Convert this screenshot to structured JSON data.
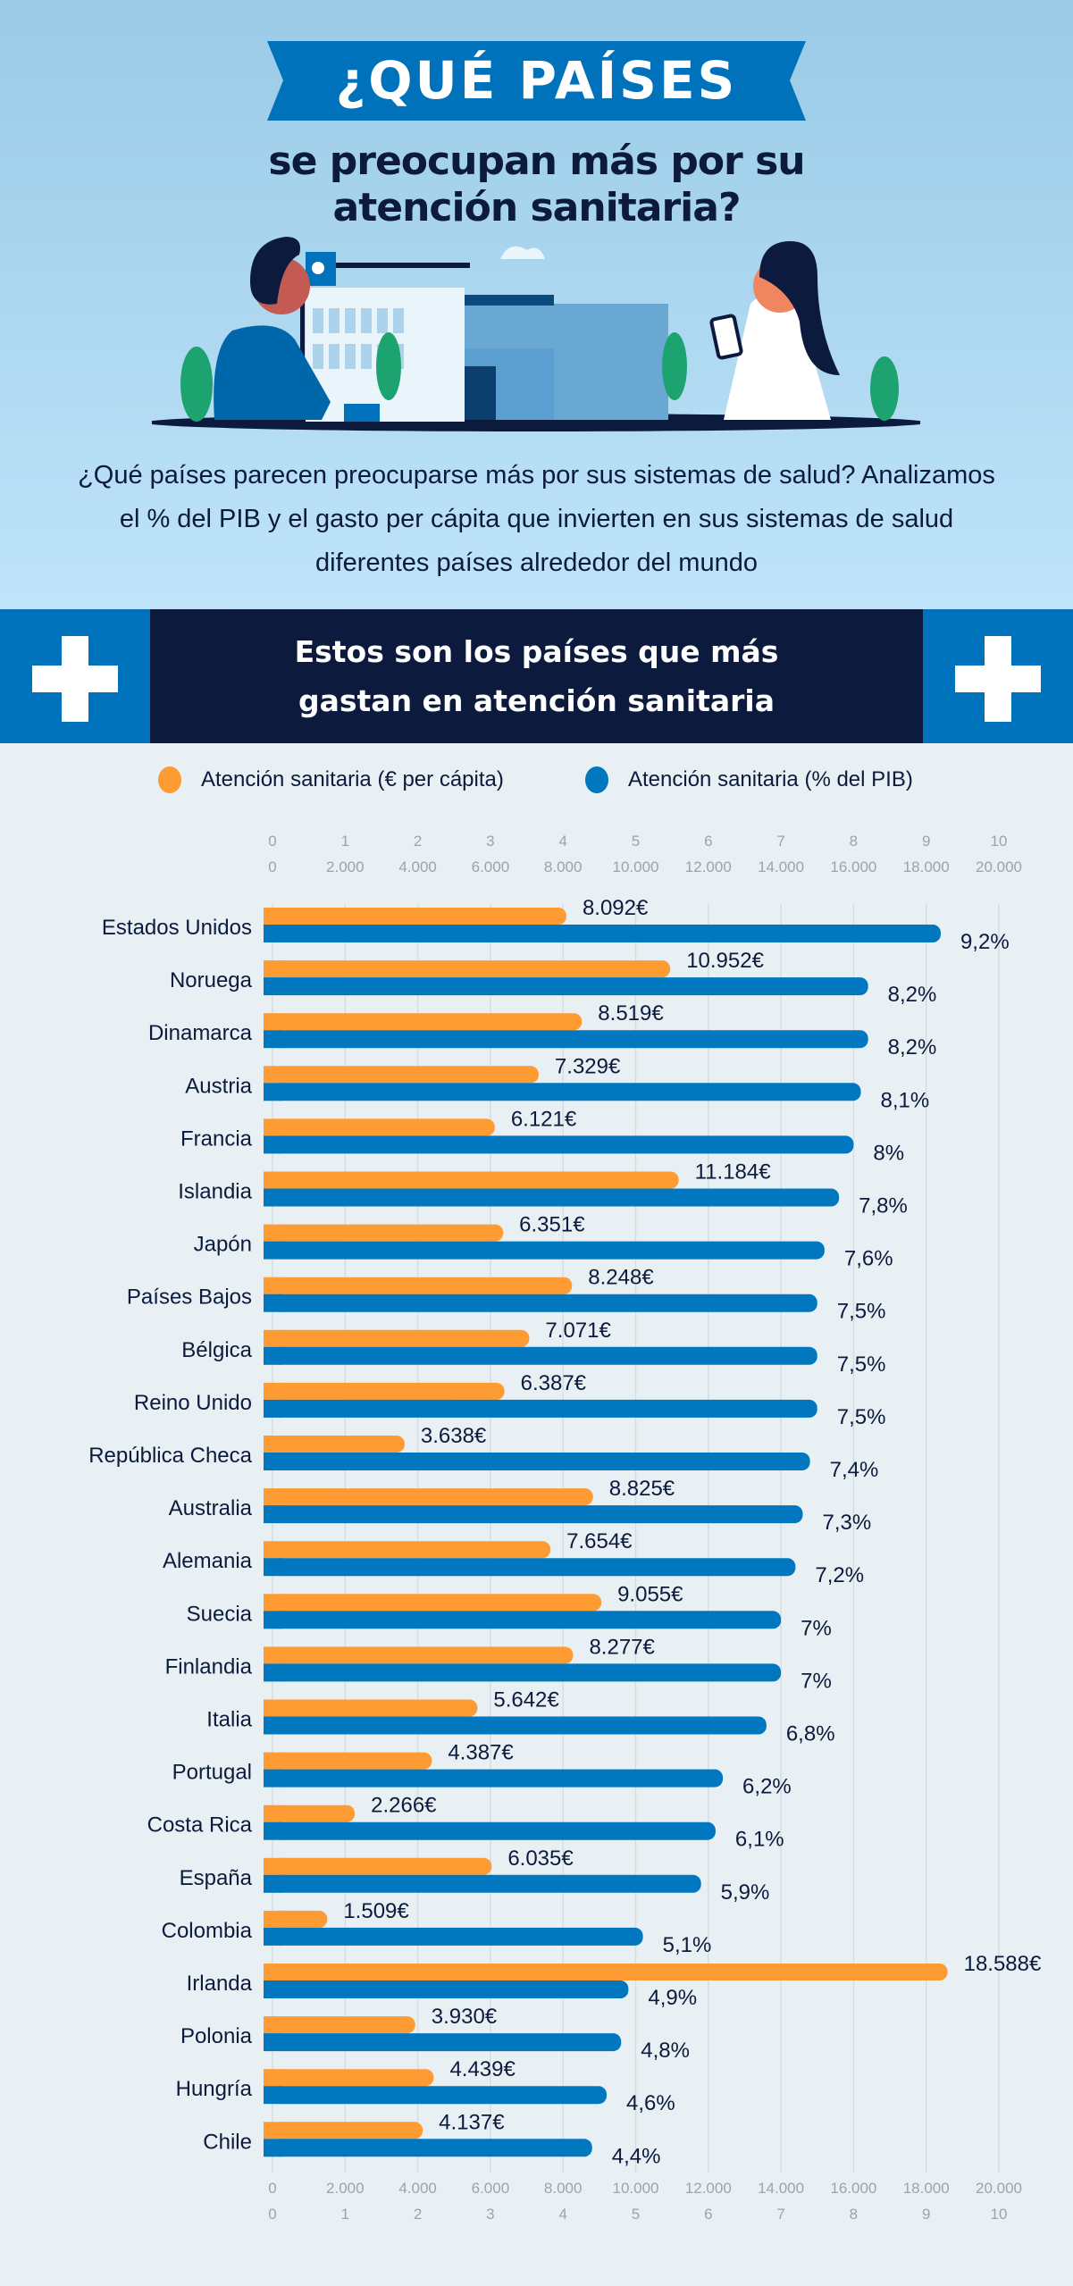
{
  "header": {
    "banner": "¿QUÉ PAÍSES",
    "subtitle_lines": [
      "se preocupan más por su",
      "atención sanitaria?"
    ],
    "intro_lines": [
      "¿Qué países parecen preocuparse más por sus sistemas de salud? Analizamos",
      "el % del PIB y el gasto per cápita que invierten en sus sistemas de salud",
      "diferentes países alrededor del mundo"
    ]
  },
  "section": {
    "title_lines": [
      "Estos son los países que más",
      "gastan en atención sanitaria"
    ],
    "icon": "plus-cross-icon"
  },
  "colors": {
    "banner": "#0072bb",
    "navy": "#0c1a3e",
    "orange": "#ff9b33",
    "blue": "#0077be"
  },
  "chart_data": {
    "type": "bar",
    "orientation": "horizontal",
    "grid": true,
    "legend_position": "top",
    "axis_pct": {
      "range": [
        0,
        10
      ],
      "ticks": [
        "0",
        "1",
        "2",
        "3",
        "4",
        "5",
        "6",
        "7",
        "8",
        "9",
        "10"
      ]
    },
    "axis_eur": {
      "range": [
        0,
        20000
      ],
      "ticks": [
        "0",
        "2.000",
        "4.000",
        "6.000",
        "8.000",
        "10.000",
        "12.000",
        "14.000",
        "16.000",
        "18.000",
        "20.000"
      ]
    },
    "categories": [
      "Estados Unidos",
      "Noruega",
      "Dinamarca",
      "Austria",
      "Francia",
      "Islandia",
      "Japón",
      "Países Bajos",
      "Bélgica",
      "Reino Unido",
      "República Checa",
      "Australia",
      "Alemania",
      "Suecia",
      "Finlandia",
      "Italia",
      "Portugal",
      "Costa Rica",
      "España",
      "Colombia",
      "Irlanda",
      "Polonia",
      "Hungría",
      "Chile"
    ],
    "series": [
      {
        "name": "Atención sanitaria (€ per cápita)",
        "axis": "eur",
        "color": "#ff9b33",
        "values": [
          8092,
          10952,
          8519,
          7329,
          6121,
          11184,
          6351,
          8248,
          7071,
          6387,
          3638,
          8825,
          7654,
          9055,
          8277,
          5642,
          4387,
          2266,
          6035,
          1509,
          18588,
          3930,
          4439,
          4137
        ],
        "labels": [
          "8.092€",
          "10.952€",
          "8.519€",
          "7.329€",
          "6.121€",
          "11.184€",
          "6.351€",
          "8.248€",
          "7.071€",
          "6.387€",
          "3.638€",
          "8.825€",
          "7.654€",
          "9.055€",
          "8.277€",
          "5.642€",
          "4.387€",
          "2.266€",
          "6.035€",
          "1.509€",
          "18.588€",
          "3.930€",
          "4.439€",
          "4.137€"
        ]
      },
      {
        "name": "Atención sanitaria (% del PIB)",
        "axis": "pct",
        "color": "#0077be",
        "values": [
          9.2,
          8.2,
          8.2,
          8.1,
          8,
          7.8,
          7.6,
          7.5,
          7.5,
          7.5,
          7.4,
          7.3,
          7.2,
          7,
          7,
          6.8,
          6.2,
          6.1,
          5.9,
          5.1,
          4.9,
          4.8,
          4.6,
          4.4
        ],
        "labels": [
          "9,2%",
          "8,2%",
          "8,2%",
          "8,1%",
          "8%",
          "7,8%",
          "7,6%",
          "7,5%",
          "7,5%",
          "7,5%",
          "7,4%",
          "7,3%",
          "7,2%",
          "7%",
          "7%",
          "6,8%",
          "6,2%",
          "6,1%",
          "5,9%",
          "5,1%",
          "4,9%",
          "4,8%",
          "4,6%",
          "4,4%"
        ]
      }
    ]
  }
}
